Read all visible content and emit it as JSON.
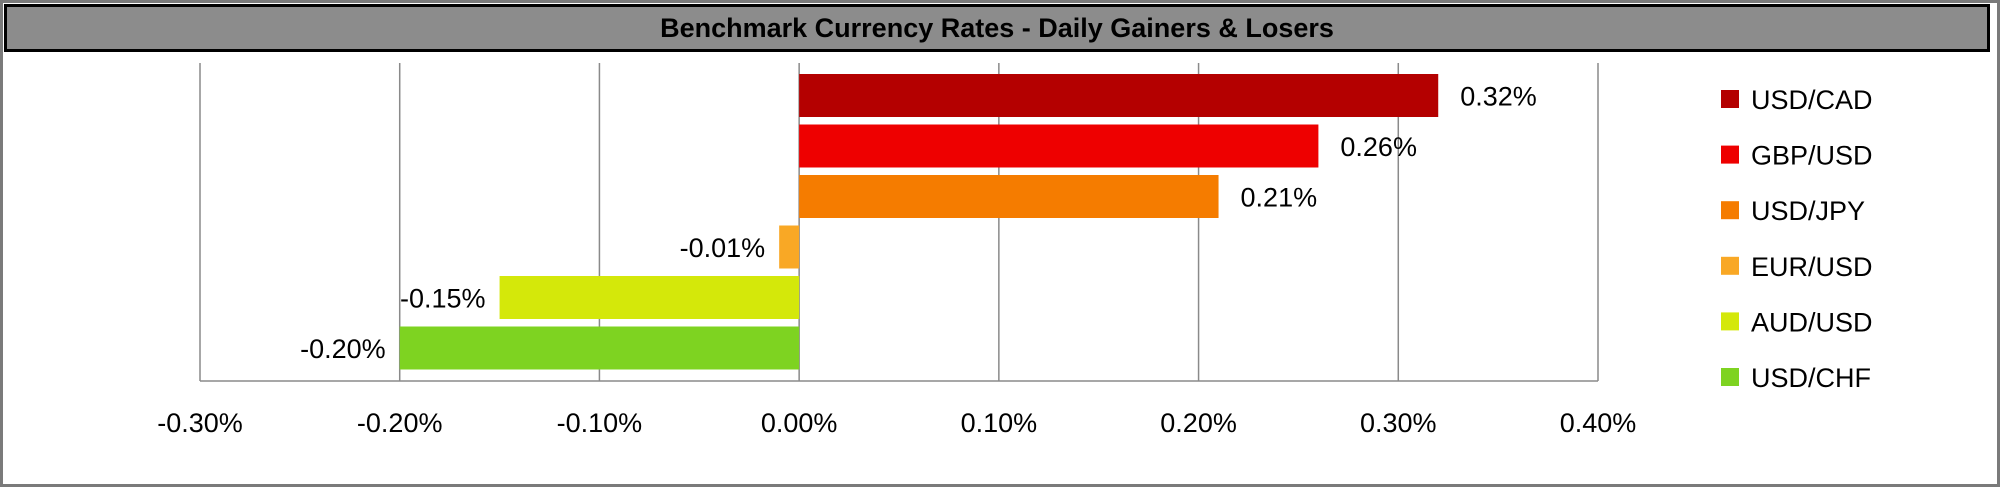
{
  "chart_data": {
    "type": "bar",
    "orientation": "horizontal",
    "title": "Benchmark Currency Rates - Daily Gainers & Losers",
    "categories": [
      "USD/CAD",
      "GBP/USD",
      "USD/JPY",
      "EUR/USD",
      "AUD/USD",
      "USD/CHF"
    ],
    "values": [
      0.32,
      0.26,
      0.21,
      -0.01,
      -0.15,
      -0.2
    ],
    "value_labels": [
      "0.32%",
      "0.26%",
      "0.21%",
      "-0.01%",
      "-0.15%",
      "-0.20%"
    ],
    "colors": [
      "#b40000",
      "#ee0000",
      "#f57c00",
      "#f9a825",
      "#d4e80a",
      "#7ed321"
    ],
    "xlim": [
      -0.3,
      0.4
    ],
    "x_ticks": [
      -0.3,
      -0.2,
      -0.1,
      0.0,
      0.1,
      0.2,
      0.3,
      0.4
    ],
    "x_tick_labels": [
      "-0.30%",
      "-0.20%",
      "-0.10%",
      "0.00%",
      "0.10%",
      "0.20%",
      "0.30%",
      "0.40%"
    ],
    "grid": true,
    "legend": {
      "placement": "right",
      "entries": [
        "USD/CAD",
        "GBP/USD",
        "USD/JPY",
        "EUR/USD",
        "AUD/USD",
        "USD/CHF"
      ]
    },
    "title_bar_color": "#8c8c8c"
  }
}
